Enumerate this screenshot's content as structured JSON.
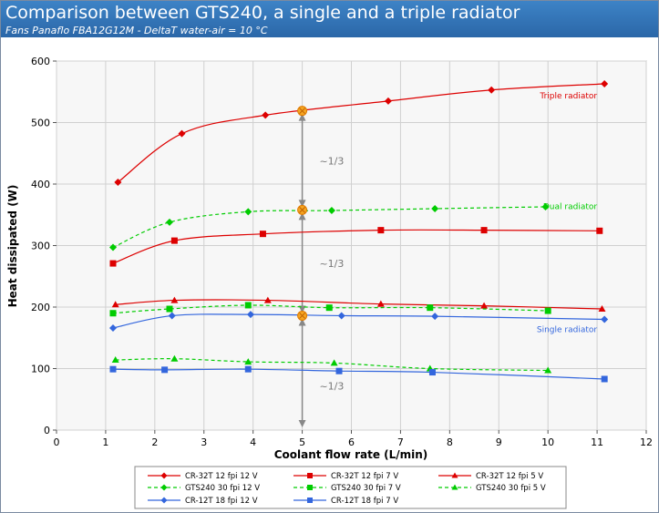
{
  "header": {
    "title": "Comparison between GTS240, a single and a triple radiator",
    "subtitle": "Fans Panaflo FBA12G12M - DeltaT water-air = 10 °C"
  },
  "chart_data": {
    "type": "line",
    "title": "Comparison between GTS240, a single and a triple radiator",
    "subtitle": "Fans Panaflo FBA12G12M - DeltaT water-air = 10 °C",
    "xlabel": "Coolant flow rate (L/min)",
    "ylabel": "Heat dissipated (W)",
    "xlim": [
      0,
      12
    ],
    "ylim": [
      0,
      600
    ],
    "xticks": [
      0,
      1,
      2,
      3,
      4,
      5,
      6,
      7,
      8,
      9,
      10,
      11,
      12
    ],
    "yticks": [
      0,
      100,
      200,
      300,
      400,
      500,
      600
    ],
    "grid": true,
    "legend_position": "bottom",
    "series": [
      {
        "name": "CR-32T 12 fpi 12 V",
        "color": "#dd0000",
        "marker": "diamond",
        "dashed": false,
        "x": [
          1.25,
          2.55,
          4.25,
          6.75,
          8.85,
          11.15
        ],
        "y": [
          403,
          482,
          512,
          535,
          553,
          563
        ]
      },
      {
        "name": "CR-32T 12 fpi 7 V",
        "color": "#dd0000",
        "marker": "square",
        "dashed": false,
        "x": [
          1.15,
          2.4,
          4.2,
          6.6,
          8.7,
          11.05
        ],
        "y": [
          271,
          308,
          319,
          325,
          325,
          324
        ]
      },
      {
        "name": "CR-32T 12 fpi 5 V",
        "color": "#dd0000",
        "marker": "triangle",
        "dashed": false,
        "x": [
          1.2,
          2.4,
          4.3,
          6.6,
          8.7,
          11.1
        ],
        "y": [
          204,
          211,
          211,
          205,
          202,
          197
        ]
      },
      {
        "name": "GTS240 30 fpi 12 V",
        "color": "#00cc00",
        "marker": "diamond",
        "dashed": true,
        "x": [
          1.15,
          2.3,
          3.9,
          5.6,
          7.7,
          9.95
        ],
        "y": [
          297,
          338,
          355,
          357,
          360,
          363
        ]
      },
      {
        "name": "GTS240 30 fpi 7 V",
        "color": "#00cc00",
        "marker": "square",
        "dashed": true,
        "x": [
          1.15,
          2.3,
          3.9,
          5.55,
          7.6,
          10.0
        ],
        "y": [
          190,
          197,
          203,
          199,
          199,
          194
        ]
      },
      {
        "name": "GTS240 30 fpi 5 V",
        "color": "#00cc00",
        "marker": "triangle",
        "dashed": true,
        "x": [
          1.2,
          2.4,
          3.9,
          5.65,
          7.6,
          10.0
        ],
        "y": [
          114,
          116,
          111,
          109,
          100,
          97
        ]
      },
      {
        "name": "CR-12T 18 fpi 12 V",
        "color": "#3366dd",
        "marker": "diamond",
        "dashed": false,
        "x": [
          1.15,
          2.35,
          3.95,
          5.8,
          7.7,
          11.15
        ],
        "y": [
          166,
          186,
          188,
          186,
          185,
          180
        ]
      },
      {
        "name": "CR-12T 18 fpi 7 V",
        "color": "#3366dd",
        "marker": "square",
        "dashed": false,
        "x": [
          1.15,
          2.2,
          3.9,
          5.75,
          7.65,
          11.15
        ],
        "y": [
          99,
          98,
          99,
          96,
          94,
          83
        ]
      }
    ],
    "annotations": [
      {
        "text": "Triple radiator",
        "x": 11.0,
        "y": 545,
        "color": "#dd0000"
      },
      {
        "text": "Dual radiator",
        "x": 11.0,
        "y": 365,
        "color": "#00cc00"
      },
      {
        "text": "Single radiator",
        "x": 11.0,
        "y": 165,
        "color": "#3366dd"
      },
      {
        "text": "~1/3",
        "x": 5.35,
        "y": 438,
        "color": "#777777"
      },
      {
        "text": "~1/3",
        "x": 5.35,
        "y": 271,
        "color": "#777777"
      },
      {
        "text": "~1/3",
        "x": 5.35,
        "y": 72,
        "color": "#777777"
      }
    ],
    "markers_at_x5": [
      519,
      358,
      186
    ]
  }
}
